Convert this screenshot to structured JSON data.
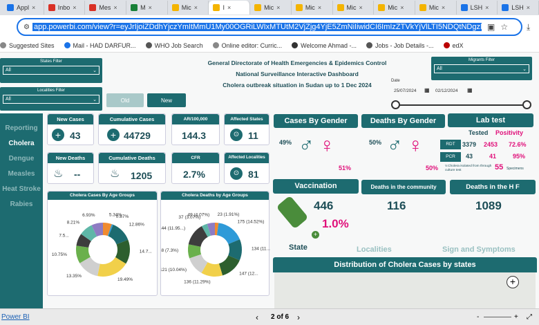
{
  "browser": {
    "tabs": [
      {
        "label": "Appl",
        "color": "#1a73e8"
      },
      {
        "label": "Inbo",
        "color": "#d93025"
      },
      {
        "label": "Mes",
        "color": "#d93025"
      },
      {
        "label": "M",
        "color": "#188038"
      },
      {
        "label": "Mic",
        "color": "#f4b400"
      },
      {
        "label": "I",
        "color": "#f4b400"
      },
      {
        "label": "Mic",
        "color": "#f4b400"
      },
      {
        "label": "Mic",
        "color": "#f4b400"
      },
      {
        "label": "Mic",
        "color": "#f4b400"
      },
      {
        "label": "Mic",
        "color": "#f4b400"
      },
      {
        "label": "Mic",
        "color": "#f4b400"
      },
      {
        "label": "LSH",
        "color": "#1a73e8"
      },
      {
        "label": "LSH",
        "color": "#1a73e8"
      }
    ],
    "url": "app.powerbi.com/view?r=eyJrIjoiZDdhYjczYmItMmU1My00OGRiLWIxMTUtM2VjZjg4YjE5ZmNiIiwidCI6ImIzZTVkYjVlLTI5NDQtNDgzNy05OWY1LTc0OD",
    "bookmarks": [
      {
        "label": "Suggested Sites",
        "color": "#888"
      },
      {
        "label": "Mail - HAD DARFUR...",
        "color": "#1a73e8"
      },
      {
        "label": "WHO Job Search",
        "color": "#555"
      },
      {
        "label": "Online editor: Curric...",
        "color": "#888"
      },
      {
        "label": "Welcome Ahmad -...",
        "color": "#333"
      },
      {
        "label": "Jobs - Job Details -...",
        "color": "#555"
      },
      {
        "label": "edX",
        "color": "#b00"
      }
    ]
  },
  "filters": {
    "states_label": "States Filter",
    "states_value": "All",
    "localities_label": "Localities Filter",
    "localities_value": "All",
    "migrants_label": "Migrants Filter",
    "migrants_value": "All",
    "date_label": "Date",
    "date_from": "25/07/2024",
    "date_to": "02/12/2024"
  },
  "header": {
    "line1": "General Directorate of Health Emergencies & Epidemics Control",
    "line2": "National Surveillance Interactive Dashboard",
    "line3": "Cholera outbreak situation in Sudan up to 1 Dec 2024",
    "old_btn": "Old",
    "new_btn": "New"
  },
  "sidebar": {
    "items": [
      "Reporting",
      "Cholera",
      "Dengue",
      "Measles",
      "Heat Stroke",
      "Rabies"
    ]
  },
  "kpis": {
    "new_cases_label": "New Cases",
    "new_cases": "43",
    "cum_cases_label": "Cumulative Cases",
    "cum_cases": "44729",
    "ar_label": "AR/100,000",
    "ar": "144.3",
    "aff_states_label": "Affected States",
    "aff_states": "11",
    "new_deaths_label": "New Deaths",
    "new_deaths": "--",
    "cum_deaths_label": "Cumulative Deaths",
    "cum_deaths": "1205",
    "cfr_label": "CFR",
    "cfr": "2.7%",
    "aff_loc_label": "Affected Localities",
    "aff_loc": "81"
  },
  "gender": {
    "cases_title": "Cases By Gender",
    "cases_male": "49%",
    "cases_female": "51%",
    "deaths_title": "Deaths By Gender",
    "deaths_male": "50%",
    "deaths_female": "50%"
  },
  "lab": {
    "title": "Lab test",
    "tested_label": "Tested",
    "positivity_label": "Positivity",
    "rdt_label": "RDT",
    "rdt_tested": "3379",
    "rdt_pos": "2453",
    "rdt_pct": "72.6%",
    "pcr_label": "PCR",
    "pcr_tested": "43",
    "pcr_pos": "41",
    "pcr_pct": "95%",
    "isolated_note": "V.Cholera isolated from through culture test",
    "isolated_count": "55",
    "specimens_label": "Specimens"
  },
  "vaccination": {
    "title": "Vaccination",
    "count": "446",
    "pct": "1.0%"
  },
  "community": {
    "title": "Deaths in the community",
    "value": "116"
  },
  "hf": {
    "title": "Deaths in the H F",
    "value": "1089"
  },
  "tabs_bottom": {
    "state": "State",
    "localities": "Localities",
    "signs": "Sign and Symptoms"
  },
  "map_title": "Distribution of Cholera Cases by states",
  "donut_cases": {
    "title": "Cholera Cases By Age Groups",
    "labels": [
      "5.34%",
      "0.87%",
      "12.86%",
      "14.7...",
      "19.49%",
      "13.35%",
      "10.75%",
      "7.5...",
      "8.21%",
      "6.93%"
    ]
  },
  "donut_deaths": {
    "title": "Cholera Deaths by Age Groups",
    "labels": [
      "23 (1.91%)",
      "175 (14.52%)",
      "134 (11...",
      "147 (12...",
      "136 (11.29%)",
      "121 (10.04%)",
      "88 (7.3%)",
      "144 (11.95...)",
      "37 (3.07%)",
      "49 (4.07%)"
    ]
  },
  "donut_colors": [
    "#f08b30",
    "#2e9ad8",
    "#1d6b70",
    "#2d5f2e",
    "#f1d04a",
    "#cfcfcf",
    "#6ab04c",
    "#3d3d3d",
    "#5fb7a8",
    "#8e7cc3"
  ],
  "status": {
    "product": "Power BI",
    "page": "2 of 6"
  }
}
